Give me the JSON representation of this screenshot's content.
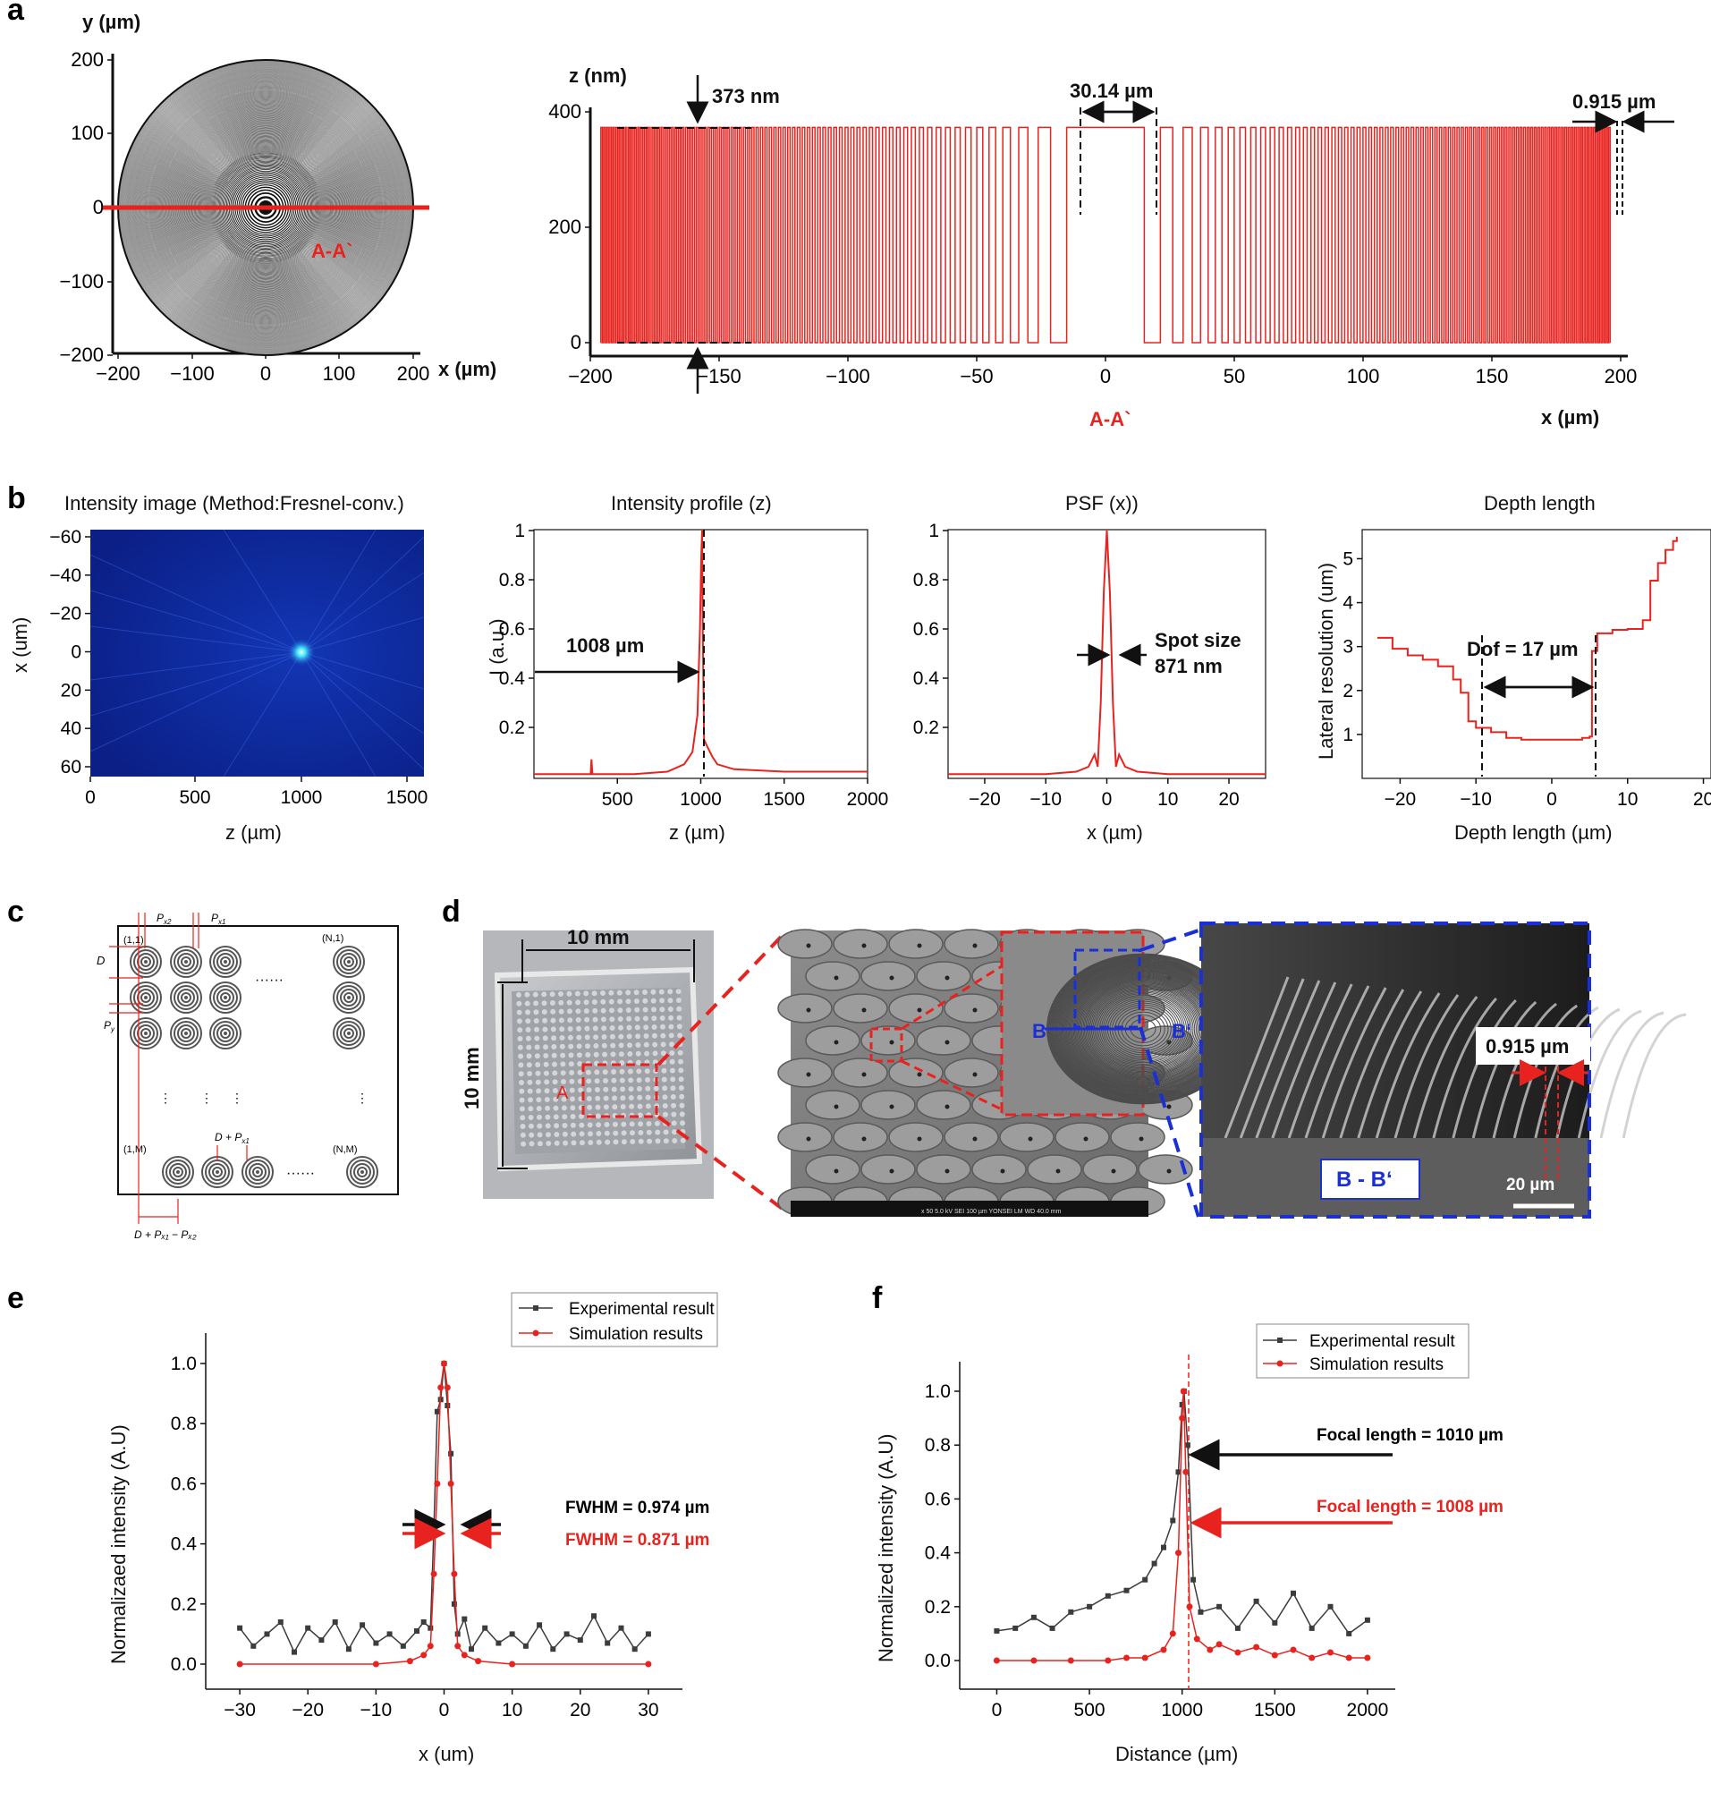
{
  "panels": {
    "a": {
      "letter": "a",
      "left": {
        "y_label": "y (µm)",
        "x_label": "x (µm)",
        "x_ticks": [
          "−200",
          "−100",
          "0",
          "100",
          "200"
        ],
        "y_ticks": [
          "200",
          "100",
          "0",
          "−100",
          "−200"
        ],
        "section_label": "A-A`"
      },
      "right": {
        "z_label": "z (nm)",
        "x_label": "x (µm)",
        "x_ticks": [
          "−200",
          "−150",
          "−100",
          "−50",
          "0",
          "50",
          "100",
          "150",
          "200"
        ],
        "y_ticks": [
          "400",
          "200",
          "0"
        ],
        "ann_depth": "373 nm",
        "ann_center": "30.14 µm",
        "ann_edge": "0.915 µm",
        "section_label": "A-A`"
      }
    },
    "b": {
      "letter": "b",
      "p1": {
        "title": "Intensity image (Method:Fresnel-conv.)",
        "x_label": "z (µm)",
        "y_label": "x (um)",
        "x_ticks": [
          "0",
          "500",
          "1000",
          "1500"
        ],
        "y_ticks": [
          "−60",
          "−40",
          "−20",
          "0",
          "20",
          "40",
          "60"
        ]
      },
      "p2": {
        "title": "Intensity profile (z)",
        "x_label": "z (µm)",
        "y_label": "I (a.u.)",
        "x_ticks": [
          "500",
          "1000",
          "1500",
          "2000"
        ],
        "y_ticks": [
          "1",
          "0.8",
          "0.6",
          "0.4",
          "0.2"
        ],
        "annotation": "1008 µm"
      },
      "p3": {
        "title": "PSF (x))",
        "x_label": "x (µm)",
        "x_ticks": [
          "−20",
          "−10",
          "0",
          "10",
          "20"
        ],
        "y_ticks": [
          "1",
          "0.8",
          "0.6",
          "0.4",
          "0.2"
        ],
        "ann1": "Spot size",
        "ann2": "871 nm"
      },
      "p4": {
        "title": "Depth length",
        "x_label": "Depth length (µm)",
        "y_label": "Lateral resolution (um)",
        "x_ticks": [
          "−20",
          "−10",
          "0",
          "10",
          "20"
        ],
        "y_ticks": [
          "5",
          "4",
          "3",
          "2",
          "1"
        ],
        "annotation": "Dof = 17 µm"
      }
    },
    "c": {
      "letter": "c",
      "labels": {
        "px2": "P",
        "px2_sub": "x2",
        "px1": "P",
        "px1_sub": "x1",
        "d": "D",
        "py": "P",
        "py_sub": "y",
        "tl": "(1,1)",
        "tr": "(N,1)",
        "bl": "(1,M)",
        "br": "(N,M)",
        "dpx1": "D + P",
        "dpx1_sub": "x1",
        "bottom": "D + Pₓ₁ − Pₓ₂",
        "hdots": "······",
        "vdots": "⋮"
      }
    },
    "d": {
      "letter": "d",
      "dim_h": "10 mm",
      "dim_v": "10 mm",
      "region_a": "A",
      "sem_b": "B",
      "sem_b2": "B‘",
      "sem_footer": "x 50        5.0 kV   SEI          100 µm  YONSEI   LM     WD 40.0 mm",
      "ann_pitch": "0.915 µm",
      "section": "B - B‘",
      "scale": "20 µm"
    },
    "e": {
      "letter": "e"
    },
    "f": {
      "letter": "f"
    }
  },
  "colors": {
    "red": "#e8231f",
    "blue": "#1a2fd6",
    "black": "#111111",
    "gray": "#3c3c3c"
  },
  "chart_data": [
    {
      "type": "line",
      "id": "a-profile",
      "title": "",
      "xlabel": "x (µm)",
      "ylabel": "z (nm)",
      "xlim": [
        -200,
        200
      ],
      "ylim": [
        0,
        400
      ],
      "series": [
        {
          "name": "zone plate profile",
          "amplitude_nm": 373,
          "center_zone_width_um": 30.14,
          "outer_zone_width_um": 0.915
        }
      ]
    },
    {
      "type": "line",
      "id": "b-intensity-profile",
      "title": "Intensity profile (z)",
      "xlabel": "z (µm)",
      "ylabel": "I (a.u.)",
      "xlim": [
        0,
        2000
      ],
      "ylim": [
        0,
        1
      ],
      "series": [
        {
          "name": "I",
          "x": [
            0,
            300,
            340,
            345,
            350,
            600,
            800,
            900,
            950,
            980,
            995,
            1003,
            1008,
            1012,
            1020,
            1040,
            1070,
            1100,
            1200,
            1500,
            2000
          ],
          "y": [
            0.01,
            0.01,
            0.01,
            0.07,
            0.01,
            0.01,
            0.02,
            0.05,
            0.1,
            0.25,
            0.6,
            0.9,
            1.0,
            0.6,
            0.15,
            0.12,
            0.08,
            0.05,
            0.03,
            0.02,
            0.02
          ]
        }
      ]
    },
    {
      "type": "line",
      "id": "b-psf",
      "title": "PSF (x))",
      "xlabel": "x (µm)",
      "ylabel": "",
      "xlim": [
        -26,
        26
      ],
      "ylim": [
        0,
        1
      ],
      "series": [
        {
          "name": "PSF",
          "x": [
            -26,
            -10,
            -5,
            -3,
            -2,
            -1.5,
            -1,
            -0.5,
            0,
            0.5,
            1,
            1.5,
            2,
            3,
            5,
            10,
            26
          ],
          "y": [
            0.01,
            0.01,
            0.02,
            0.04,
            0.09,
            0.04,
            0.3,
            0.75,
            1.0,
            0.75,
            0.3,
            0.04,
            0.09,
            0.04,
            0.02,
            0.01,
            0.01
          ]
        }
      ]
    },
    {
      "type": "line",
      "id": "b-depth-length",
      "title": "Depth length",
      "xlabel": "Depth length (µm)",
      "ylabel": "Lateral resolution (um)",
      "xlim": [
        -25,
        21
      ],
      "ylim": [
        0,
        5.6
      ],
      "series": [
        {
          "name": "resolution",
          "x": [
            -23,
            -21,
            -19,
            -17,
            -15,
            -13,
            -12,
            -11,
            -10,
            -8,
            -6,
            -4,
            -2,
            0,
            2,
            4,
            5,
            5.3,
            6,
            8,
            10,
            12,
            13,
            14,
            15,
            16,
            16.5
          ],
          "y": [
            3.2,
            2.95,
            2.8,
            2.7,
            2.55,
            2.25,
            1.95,
            1.3,
            1.15,
            1.05,
            0.92,
            0.88,
            0.88,
            0.88,
            0.88,
            0.92,
            0.95,
            2.9,
            3.3,
            3.38,
            3.4,
            3.6,
            4.5,
            4.9,
            5.2,
            5.4,
            5.5
          ]
        }
      ],
      "annotation": "Dof = 17 µm"
    },
    {
      "type": "line",
      "id": "e-fwhm",
      "title": "",
      "xlabel": "x (um)",
      "ylabel": "Normalizaed intensity (A.U)",
      "xlim": [
        -35,
        35
      ],
      "ylim": [
        -0.05,
        1.1
      ],
      "series": [
        {
          "name": "Experimental result",
          "x": [
            -30,
            -28,
            -26,
            -24,
            -22,
            -20,
            -18,
            -16,
            -14,
            -12,
            -10,
            -8,
            -6,
            -4,
            -3,
            -2,
            -1.5,
            -1,
            -0.5,
            0,
            0.5,
            1,
            1.5,
            2,
            3,
            4,
            6,
            8,
            10,
            12,
            14,
            16,
            18,
            20,
            22,
            24,
            26,
            28,
            30
          ],
          "y": [
            0.12,
            0.06,
            0.1,
            0.14,
            0.04,
            0.12,
            0.08,
            0.14,
            0.05,
            0.13,
            0.07,
            0.1,
            0.06,
            0.11,
            0.14,
            0.12,
            0.45,
            0.84,
            0.88,
            1.0,
            0.86,
            0.7,
            0.2,
            0.1,
            0.15,
            0.05,
            0.12,
            0.07,
            0.1,
            0.06,
            0.13,
            0.05,
            0.1,
            0.08,
            0.16,
            0.07,
            0.12,
            0.05,
            0.1
          ]
        },
        {
          "name": "Simulation results",
          "x": [
            -30,
            -10,
            -5,
            -3,
            -2,
            -1.5,
            -1,
            -0.5,
            0,
            0.5,
            1,
            1.5,
            2,
            3,
            5,
            10,
            30
          ],
          "y": [
            0.0,
            0.0,
            0.01,
            0.03,
            0.06,
            0.3,
            0.6,
            0.92,
            1.0,
            0.92,
            0.6,
            0.3,
            0.06,
            0.03,
            0.01,
            0.0,
            0.0
          ]
        }
      ],
      "legend": [
        "Experimental result",
        "Simulation results"
      ],
      "annotations": [
        "FWHM = 0.974 µm",
        "FWHM = 0.871 µm"
      ],
      "x_ticks": [
        "−30",
        "−20",
        "−10",
        "0",
        "10",
        "20",
        "30"
      ],
      "y_ticks": [
        "0.0",
        "0.2",
        "0.4",
        "0.6",
        "0.8",
        "1.0"
      ]
    },
    {
      "type": "line",
      "id": "f-focal",
      "title": "",
      "xlabel": "Distance (µm)",
      "ylabel": "Normalized intensity (A.U)",
      "xlim": [
        -200,
        2150
      ],
      "ylim": [
        -0.05,
        1.1
      ],
      "series": [
        {
          "name": "Experimental result",
          "x": [
            0,
            100,
            200,
            300,
            400,
            500,
            600,
            700,
            800,
            850,
            900,
            950,
            980,
            1000,
            1010,
            1030,
            1060,
            1100,
            1200,
            1300,
            1400,
            1500,
            1600,
            1700,
            1800,
            1900,
            2000
          ],
          "y": [
            0.11,
            0.12,
            0.16,
            0.12,
            0.18,
            0.2,
            0.24,
            0.26,
            0.3,
            0.36,
            0.42,
            0.52,
            0.7,
            0.95,
            1.0,
            0.8,
            0.3,
            0.18,
            0.2,
            0.12,
            0.22,
            0.14,
            0.25,
            0.12,
            0.2,
            0.1,
            0.15
          ]
        },
        {
          "name": "Simulation results",
          "x": [
            0,
            200,
            400,
            600,
            700,
            800,
            900,
            950,
            980,
            1000,
            1008,
            1020,
            1040,
            1080,
            1150,
            1200,
            1300,
            1400,
            1500,
            1600,
            1700,
            1800,
            1900,
            2000
          ],
          "y": [
            0.0,
            0.0,
            0.0,
            0.0,
            0.01,
            0.01,
            0.04,
            0.1,
            0.4,
            0.9,
            1.0,
            0.7,
            0.2,
            0.08,
            0.04,
            0.06,
            0.03,
            0.05,
            0.02,
            0.04,
            0.01,
            0.03,
            0.01,
            0.01
          ]
        }
      ],
      "legend": [
        "Experimental result",
        "Simulation results"
      ],
      "annotations": [
        "Focal length = 1010 µm",
        "Focal length = 1008 µm"
      ],
      "x_ticks": [
        "0",
        "500",
        "1000",
        "1500",
        "2000"
      ],
      "y_ticks": [
        "0.0",
        "0.2",
        "0.4",
        "0.6",
        "0.8",
        "1.0"
      ]
    }
  ]
}
